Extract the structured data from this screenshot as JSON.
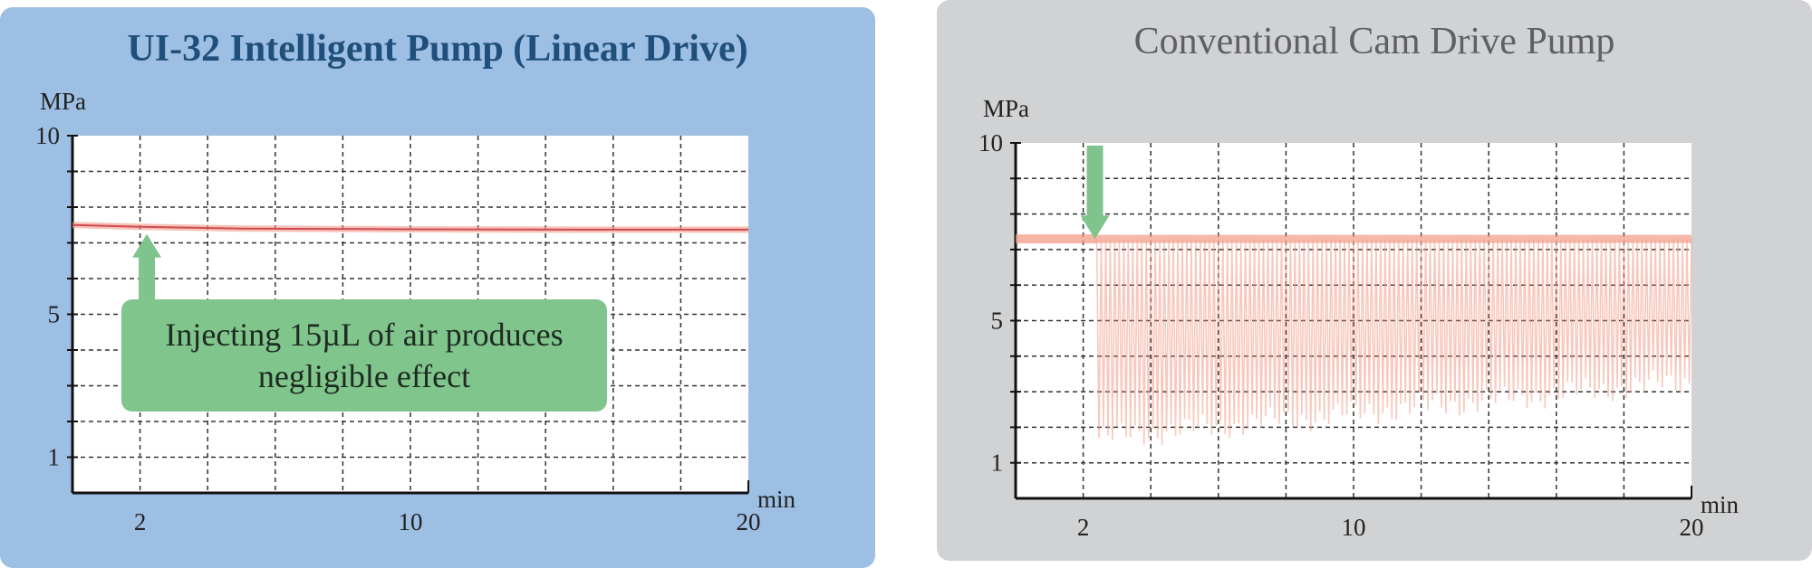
{
  "colors": {
    "left_background": "#9dbfe4",
    "right_background": "#d1d2d4",
    "trace": "#f29b86",
    "trace_dark": "#d04a55",
    "arrow": "#7ec48c"
  },
  "chart_data": [
    {
      "type": "line",
      "title": "UI-32 Intelligent Pump (Linear Drive)",
      "ylabel": "MPa",
      "xlabel": "min",
      "x_ticks": [
        2,
        10,
        20
      ],
      "y_ticks": [
        1,
        5,
        10
      ],
      "xlim": [
        0,
        20
      ],
      "ylim": [
        0,
        10
      ],
      "grid": true,
      "series": [
        {
          "x": [
            0,
            2,
            5,
            10,
            15,
            20
          ],
          "y": [
            7.5,
            7.45,
            7.4,
            7.38,
            7.37,
            7.37
          ]
        }
      ],
      "annotation": {
        "text": "Injecting 15µL of air produces negligible effect",
        "arrow_x": 2.2,
        "arrow_y": 7.4
      }
    },
    {
      "type": "line",
      "title": "Conventional Cam Drive Pump",
      "ylabel": "MPa",
      "xlabel": "min",
      "x_ticks": [
        2,
        10,
        20
      ],
      "y_ticks": [
        1,
        5,
        10
      ],
      "xlim": [
        0,
        20
      ],
      "ylim": [
        0,
        10
      ],
      "grid": true,
      "series": [
        {
          "steady_until_x": 2.4,
          "steady_y": 7.3,
          "upper_y": 7.3,
          "lower_envelope": {
            "x": [
              2.4,
              20
            ],
            "y": [
              1.7,
              3.3
            ]
          },
          "cycles": 132
        }
      ],
      "annotation": {
        "arrow_x": 2.4,
        "arrow_y": 7.5
      }
    }
  ]
}
